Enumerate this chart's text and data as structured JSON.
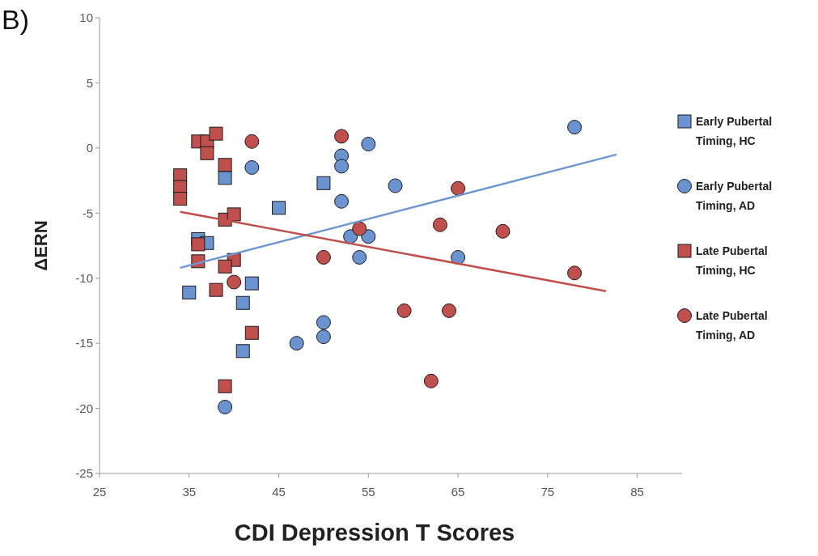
{
  "chart_data": {
    "type": "scatter",
    "title": "B)",
    "xlabel": "CDI Depression T Scores",
    "ylabel": "ΔERN",
    "xlim": [
      25,
      90
    ],
    "xticks": [
      25,
      35,
      45,
      55,
      65,
      75,
      85
    ],
    "ylim": [
      -25,
      10
    ],
    "yticks": [
      -25,
      -20,
      -15,
      -10,
      -5,
      0,
      5,
      10
    ],
    "grid": false,
    "legend": "right",
    "series": [
      {
        "name": "Early Pubertal Timing, HC",
        "marker": "square",
        "color": "#6a93d0",
        "x": [
          39,
          45,
          50,
          36,
          37,
          35,
          42,
          41,
          41
        ],
        "values": [
          -2.3,
          -4.6,
          -2.7,
          -7.0,
          -7.3,
          -11.1,
          -10.4,
          -11.9,
          -15.6
        ]
      },
      {
        "name": "Early Pubertal Timing, AD",
        "marker": "circle",
        "color": "#6a93d0",
        "x": [
          42,
          52,
          52,
          55,
          52,
          58,
          53,
          55,
          54,
          65,
          78,
          50,
          50,
          47,
          39
        ],
        "values": [
          -1.5,
          -0.6,
          -1.4,
          0.3,
          -4.1,
          -2.9,
          -6.8,
          -6.8,
          -8.4,
          -8.4,
          1.6,
          -13.4,
          -14.5,
          -15.0,
          -19.9
        ]
      },
      {
        "name": "Late Pubertal Timing, HC",
        "marker": "square",
        "color": "#c0504d",
        "x": [
          34,
          34,
          34,
          36,
          37,
          38,
          37,
          39,
          39,
          40,
          36,
          36,
          40,
          39,
          38,
          42,
          39
        ],
        "values": [
          -2.1,
          -3.0,
          -3.9,
          0.5,
          0.5,
          1.1,
          -0.4,
          -1.3,
          -5.5,
          -5.1,
          -7.4,
          -8.7,
          -8.6,
          -9.1,
          -10.9,
          -14.2,
          -18.3
        ]
      },
      {
        "name": "Late Pubertal Timing, AD",
        "marker": "circle",
        "color": "#c0504d",
        "x": [
          42,
          52,
          40,
          50,
          54,
          65,
          63,
          70,
          78,
          59,
          64,
          62
        ],
        "values": [
          0.5,
          0.9,
          -10.3,
          -8.4,
          -6.2,
          -3.1,
          -5.9,
          -6.4,
          -9.6,
          -12.5,
          -12.5,
          -17.9
        ]
      },
      {
        "type": "line",
        "marker": "none",
        "color": "#6e97d0",
        "x": [
          34,
          82.7
        ],
        "values": [
          -9.2,
          -0.5
        ]
      },
      {
        "type": "line",
        "marker": "none",
        "color": "#c0504d",
        "x": [
          34,
          81.5
        ],
        "values": [
          -4.9,
          -11.0
        ]
      }
    ]
  }
}
